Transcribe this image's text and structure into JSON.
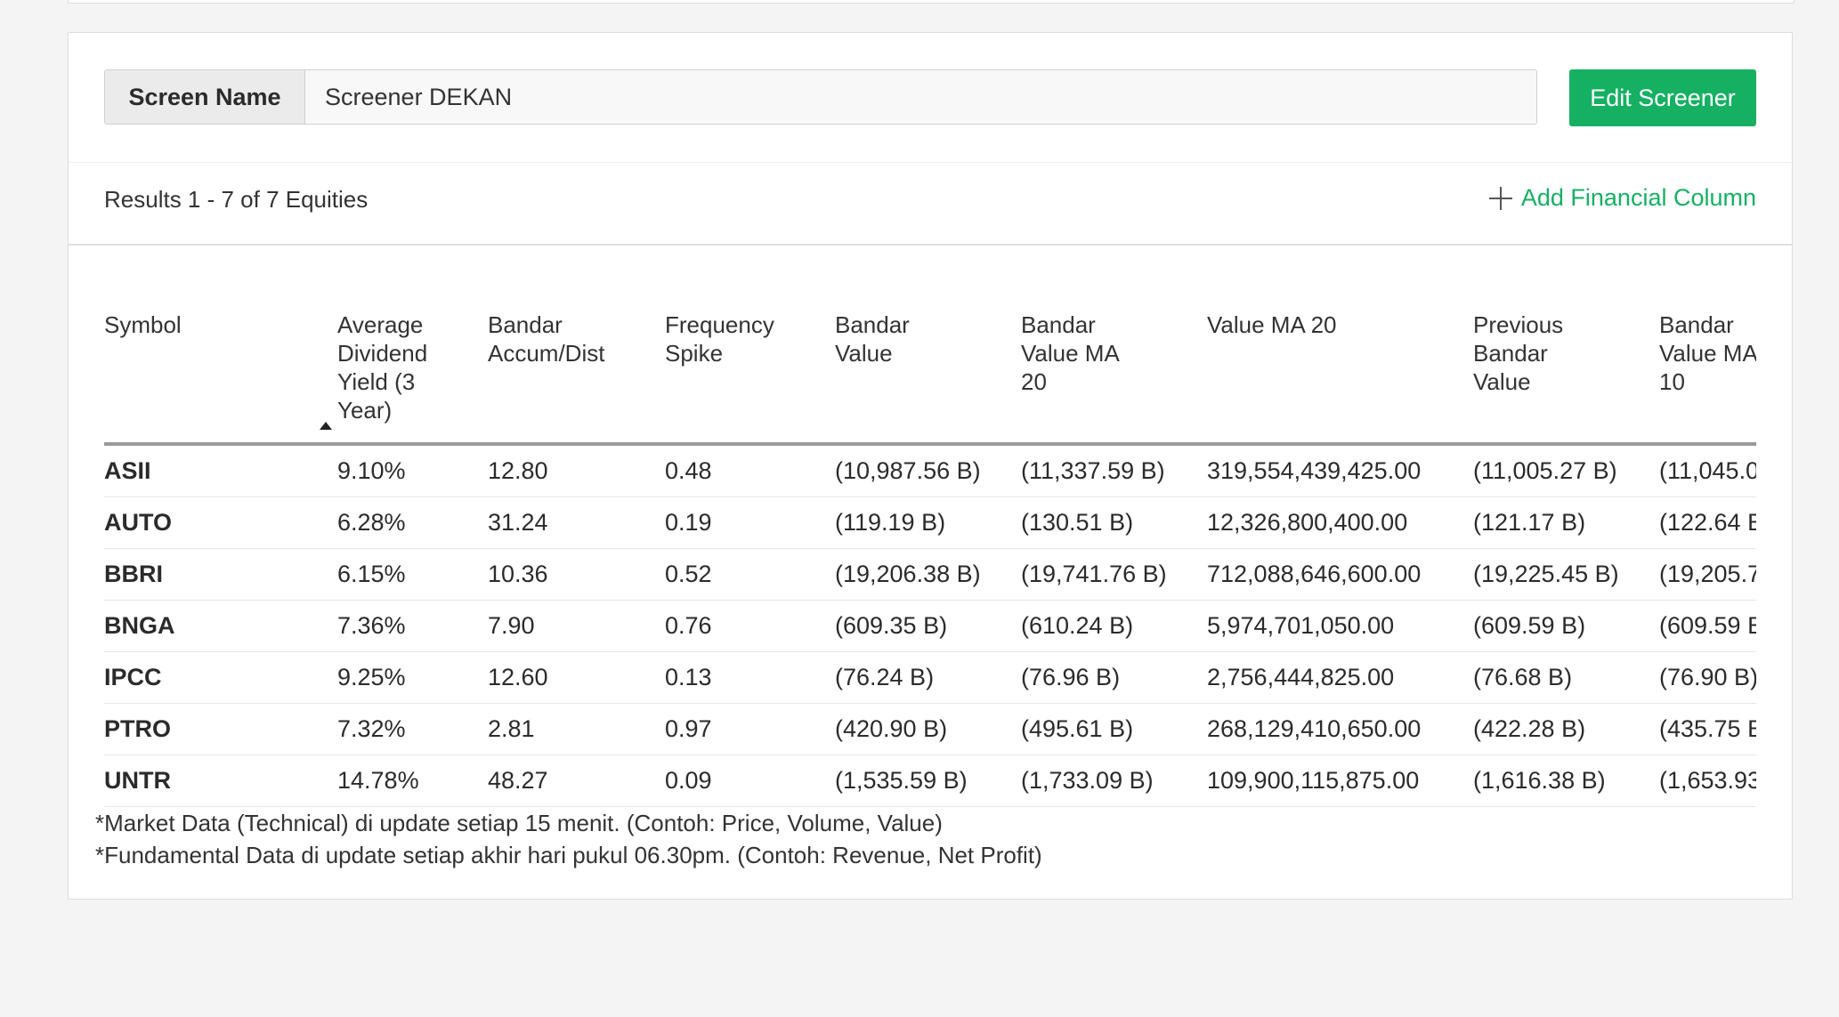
{
  "screen": {
    "label": "Screen Name",
    "value": "Screener DEKAN",
    "edit_button": "Edit Screener"
  },
  "results": {
    "summary": "Results 1 - 7 of 7 Equities",
    "add_column": "Add Financial Column"
  },
  "table": {
    "headers": [
      "Symbol",
      "Average Dividend Yield (3 Year)",
      "Bandar Accum/Dist",
      "Frequency Spike",
      "Bandar Value",
      "Bandar Value MA 20",
      "Value MA 20",
      "Previous Bandar Value",
      "Bandar Value MA 10"
    ],
    "sorted_column": "Average Dividend Yield (3 Year)",
    "rows": [
      [
        "ASII",
        "9.10%",
        "12.80",
        "0.48",
        "(10,987.56 B)",
        "(11,337.59 B)",
        "319,554,439,425.00",
        "(11,005.27 B)",
        "(11,045.0"
      ],
      [
        "AUTO",
        "6.28%",
        "31.24",
        "0.19",
        "(119.19 B)",
        "(130.51 B)",
        "12,326,800,400.00",
        "(121.17 B)",
        "(122.64 B"
      ],
      [
        "BBRI",
        "6.15%",
        "10.36",
        "0.52",
        "(19,206.38 B)",
        "(19,741.76 B)",
        "712,088,646,600.00",
        "(19,225.45 B)",
        "(19,205.7"
      ],
      [
        "BNGA",
        "7.36%",
        "7.90",
        "0.76",
        "(609.35 B)",
        "(610.24 B)",
        "5,974,701,050.00",
        "(609.59 B)",
        "(609.59 B"
      ],
      [
        "IPCC",
        "9.25%",
        "12.60",
        "0.13",
        "(76.24 B)",
        "(76.96 B)",
        "2,756,444,825.00",
        "(76.68 B)",
        "(76.90 B)"
      ],
      [
        "PTRO",
        "7.32%",
        "2.81",
        "0.97",
        "(420.90 B)",
        "(495.61 B)",
        "268,129,410,650.00",
        "(422.28 B)",
        "(435.75 B"
      ],
      [
        "UNTR",
        "14.78%",
        "48.27",
        "0.09",
        "(1,535.59 B)",
        "(1,733.09 B)",
        "109,900,115,875.00",
        "(1,616.38 B)",
        "(1,653.93"
      ]
    ]
  },
  "notes": [
    "*Market Data (Technical) di update setiap 15 menit. (Contoh: Price, Volume, Value)",
    "*Fundamental Data di update setiap akhir hari pukul 06.30pm. (Contoh: Revenue, Net Profit)"
  ],
  "colors": {
    "accent": "#16b063",
    "background": "#f4f4f4"
  }
}
